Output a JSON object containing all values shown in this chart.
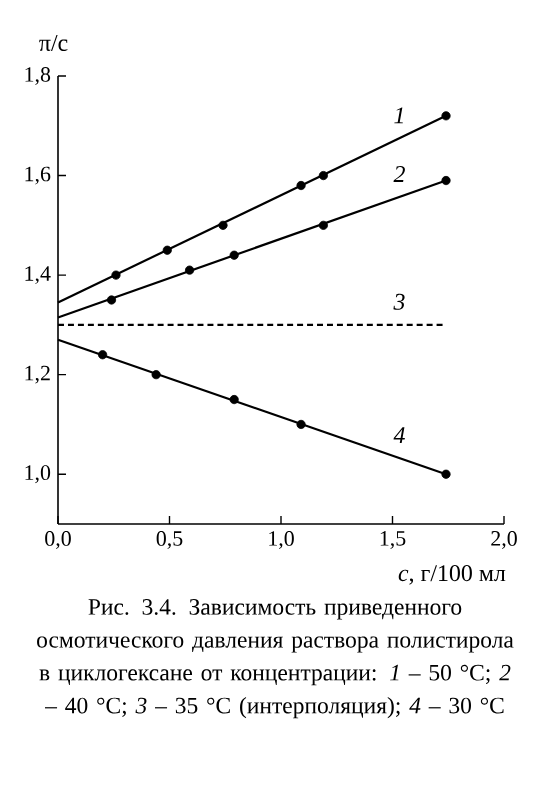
{
  "chart_data": {
    "type": "line",
    "xlabel": "*c*, г/100 мл",
    "ylabel": "π/c",
    "xlim": [
      0,
      2
    ],
    "ylim": [
      0.9,
      1.8
    ],
    "xticks": [
      {
        "value": 0,
        "label": "0,0"
      },
      {
        "value": 0.5,
        "label": "0,5"
      },
      {
        "value": 1,
        "label": "1,0"
      },
      {
        "value": 1.5,
        "label": "1,5"
      },
      {
        "value": 2,
        "label": "2,0"
      }
    ],
    "yticks": [
      {
        "value": 1.0,
        "label": "1,0"
      },
      {
        "value": 1.2,
        "label": "1,2"
      },
      {
        "value": 1.4,
        "label": "1,4"
      },
      {
        "value": 1.6,
        "label": "1,6"
      },
      {
        "value": 1.8,
        "label": "1,8"
      }
    ],
    "grid": false,
    "series": [
      {
        "name": "1",
        "color": "#000000",
        "marker": "none",
        "line_style": "solid",
        "x": [
          0,
          1.74
        ],
        "values": [
          1.345,
          1.72
        ]
      },
      {
        "type": "scatter",
        "color": "#000000",
        "marker": "circle",
        "x": [
          0.26,
          0.49,
          0.74,
          1.09,
          1.19,
          1.74
        ],
        "values": [
          1.4,
          1.45,
          1.5,
          1.58,
          1.6,
          1.72
        ]
      },
      {
        "name": "2",
        "color": "#000000",
        "marker": "none",
        "line_style": "solid",
        "x": [
          0,
          1.74
        ],
        "values": [
          1.315,
          1.59
        ]
      },
      {
        "type": "scatter",
        "color": "#000000",
        "marker": "circle",
        "x": [
          0.24,
          0.59,
          0.79,
          1.19,
          1.74
        ],
        "values": [
          1.35,
          1.41,
          1.44,
          1.5,
          1.59
        ]
      },
      {
        "name": "3",
        "color": "#000000",
        "marker": "none",
        "line_style": "dashed",
        "x": [
          0,
          1.74
        ],
        "values": [
          1.3,
          1.3
        ]
      },
      {
        "name": "4",
        "color": "#000000",
        "marker": "none",
        "line_style": "solid",
        "x": [
          0,
          1.74
        ],
        "values": [
          1.27,
          1.0
        ]
      },
      {
        "type": "scatter",
        "color": "#000000",
        "marker": "circle",
        "x": [
          0.2,
          0.44,
          0.79,
          1.09,
          1.74
        ],
        "values": [
          1.24,
          1.2,
          1.15,
          1.1,
          1.0
        ]
      }
    ],
    "annotations": [
      "Рис. 3.4. Зависимость приведенного осмотического давления раствора полистирола в циклогексане от концентрации: *1* – 50 °C; *2* – 40 °C; *3* – 35 °C (интерполяция); *4* – 30 °C"
    ]
  }
}
